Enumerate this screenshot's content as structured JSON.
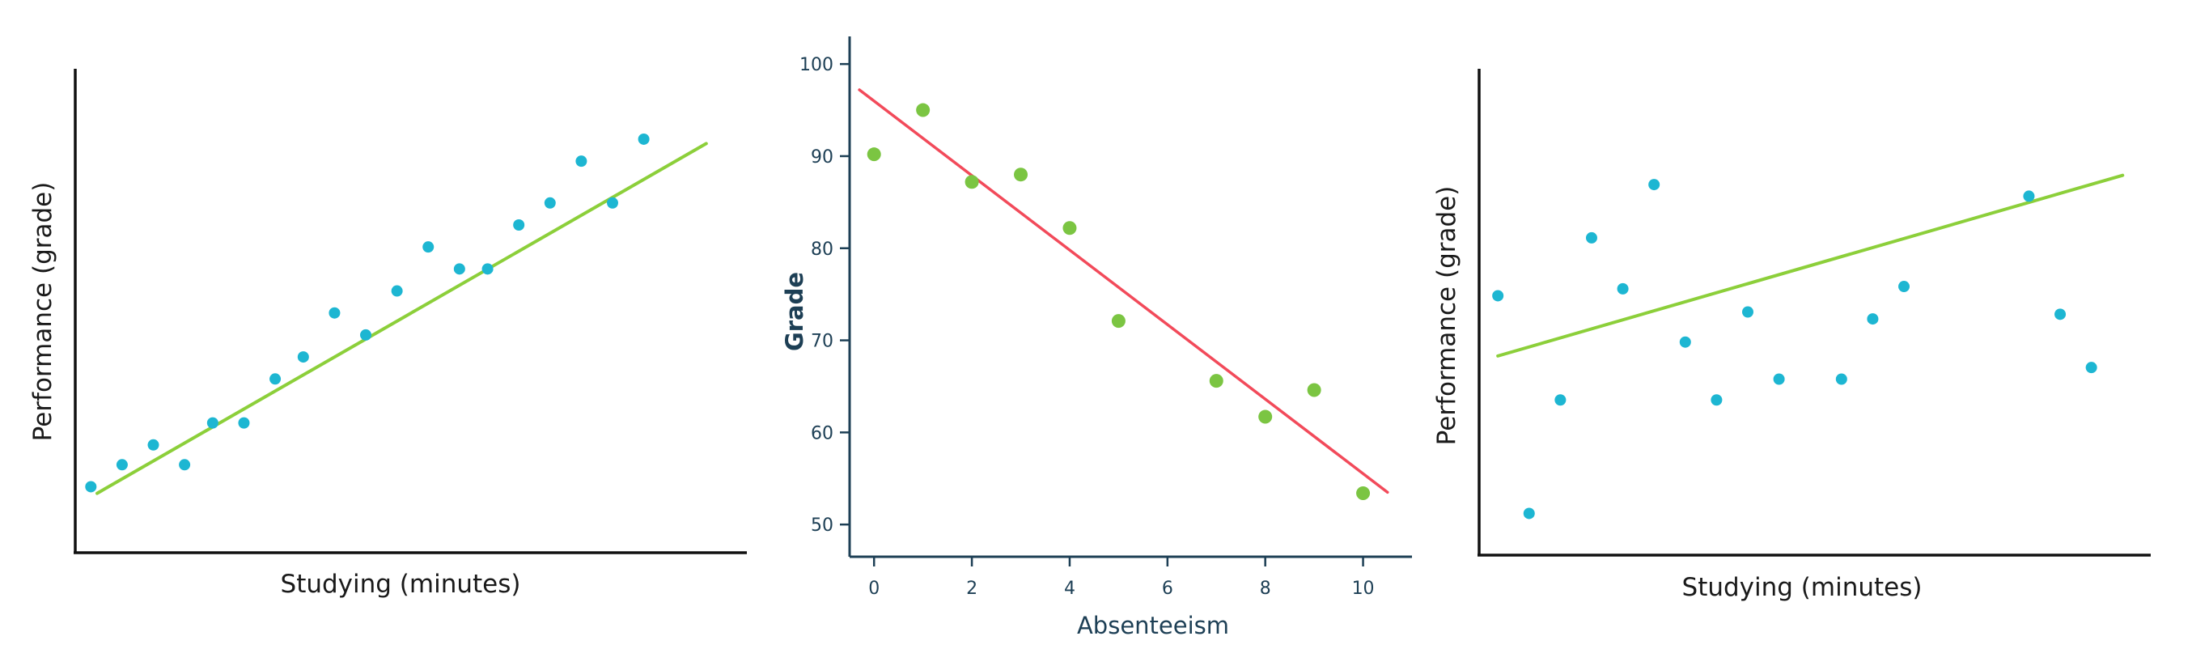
{
  "colors": {
    "point_blue": "#1db6d2",
    "line_green": "#8ccf3a",
    "point_green": "#7bc542",
    "line_red": "#f24a5a",
    "axis_dark": "#111111",
    "axis_navy": "#1d3f55"
  },
  "chart_data": [
    {
      "type": "scatter",
      "xlabel": "Studying (minutes)",
      "ylabel": "Performance (grade)",
      "ticks_shown": false,
      "series": [
        {
          "points": [
            [
              0.5,
              1.5
            ],
            [
              1.5,
              2.5
            ],
            [
              2.5,
              3.4
            ],
            [
              3.5,
              2.5
            ],
            [
              4.4,
              4.4
            ],
            [
              5.4,
              4.4
            ],
            [
              6.4,
              6.4
            ],
            [
              7.3,
              7.4
            ],
            [
              8.3,
              9.4
            ],
            [
              9.3,
              8.4
            ],
            [
              10.3,
              10.4
            ],
            [
              11.3,
              12.4
            ],
            [
              12.3,
              11.4
            ],
            [
              13.2,
              11.4
            ],
            [
              14.2,
              13.4
            ],
            [
              15.2,
              14.4
            ],
            [
              16.2,
              16.3
            ],
            [
              17.2,
              14.4
            ],
            [
              18.2,
              17.3
            ]
          ]
        }
      ],
      "trendline": {
        "x": [
          0.7,
          20.2
        ],
        "y": [
          1.2,
          17.1
        ]
      },
      "xlim": [
        0,
        21.5
      ],
      "ylim": [
        -1.5,
        20.5
      ]
    },
    {
      "type": "scatter",
      "xlabel": "Absenteeism",
      "ylabel": "Grade",
      "xticks": [
        "0",
        "2",
        "4",
        "6",
        "8",
        "10"
      ],
      "yticks": [
        "50",
        "60",
        "70",
        "80",
        "90",
        "100"
      ],
      "xlim": [
        -0.5,
        11
      ],
      "ylim": [
        46.5,
        103
      ],
      "series": [
        {
          "points": [
            [
              0,
              90.2
            ],
            [
              1,
              95.0
            ],
            [
              2,
              87.2
            ],
            [
              3,
              88.0
            ],
            [
              4,
              82.2
            ],
            [
              5,
              72.1
            ],
            [
              7,
              65.6
            ],
            [
              8,
              61.7
            ],
            [
              9,
              64.6
            ],
            [
              10,
              53.4
            ]
          ]
        }
      ],
      "trendline": {
        "x": [
          -0.3,
          10.5
        ],
        "y": [
          97.2,
          53.5
        ]
      }
    },
    {
      "type": "scatter",
      "xlabel": "Studying (minutes)",
      "ylabel": "Performance (grade)",
      "ticks_shown": false,
      "series": [
        {
          "points": [
            [
              0.6,
              9.7
            ],
            [
              1.6,
              0.3
            ],
            [
              2.6,
              5.2
            ],
            [
              3.6,
              12.2
            ],
            [
              4.6,
              10.0
            ],
            [
              5.6,
              14.5
            ],
            [
              6.6,
              7.7
            ],
            [
              7.6,
              5.2
            ],
            [
              8.6,
              9.0
            ],
            [
              9.6,
              6.1
            ],
            [
              11.6,
              6.1
            ],
            [
              12.6,
              8.7
            ],
            [
              13.6,
              10.1
            ],
            [
              17.6,
              14.0
            ],
            [
              18.6,
              8.9
            ],
            [
              19.6,
              6.6
            ]
          ]
        }
      ],
      "trendline": {
        "x": [
          0.6,
          20.6
        ],
        "y": [
          7.1,
          14.9
        ]
      },
      "xlim": [
        0,
        21.5
      ],
      "ylim": [
        -1.5,
        19.5
      ]
    }
  ]
}
